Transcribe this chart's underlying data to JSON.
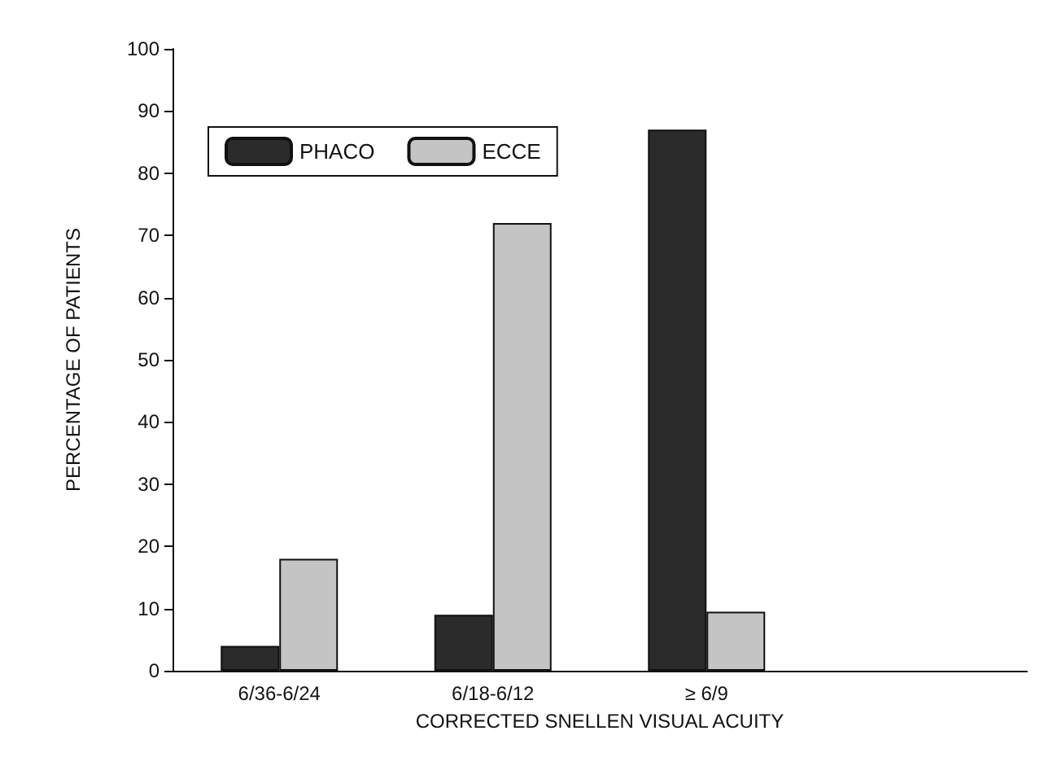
{
  "chart_data": {
    "type": "bar",
    "xlabel": "CORRECTED SNELLEN VISUAL ACUITY",
    "ylabel": "PERCENTAGE OF PATIENTS",
    "categories": [
      "6/36-6/24",
      "6/18-6/12",
      "≥ 6/9",
      null
    ],
    "series": [
      {
        "name": "PHACO",
        "color": "#2b2b2b",
        "values": [
          4,
          9,
          87,
          null
        ]
      },
      {
        "name": "ECCE",
        "color": "#c4c4c4",
        "values": [
          18,
          72,
          9.5,
          null
        ]
      }
    ],
    "ylim": [
      0,
      100
    ],
    "yticks": [
      0,
      10,
      20,
      30,
      40,
      50,
      60,
      70,
      80,
      90,
      100
    ],
    "grid": false,
    "legend": "top left"
  }
}
